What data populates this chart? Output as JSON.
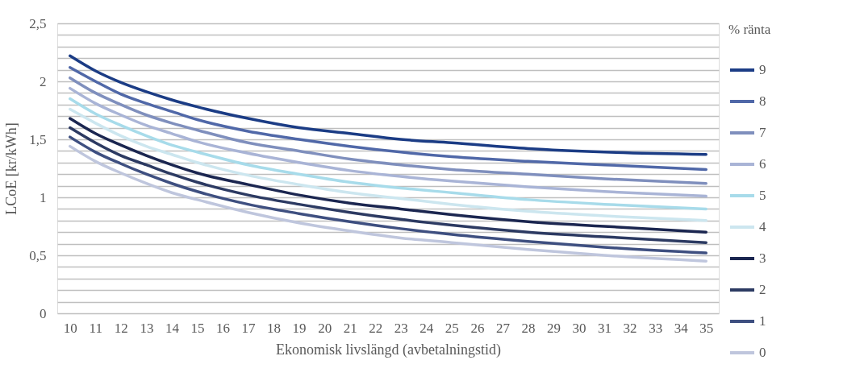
{
  "chart_data": {
    "type": "line",
    "xlabel": "Ekonomisk livslängd (avbetalningstid)",
    "ylabel": "LCoE [kr/kWh]",
    "legend_title": "% ränta",
    "x": [
      10,
      11,
      12,
      13,
      14,
      15,
      17,
      19,
      21,
      23,
      25,
      28,
      31,
      35
    ],
    "xlim": [
      9.5,
      35.5
    ],
    "xticks": [
      10,
      11,
      12,
      13,
      14,
      15,
      16,
      17,
      18,
      19,
      20,
      21,
      22,
      23,
      24,
      25,
      26,
      27,
      28,
      29,
      30,
      31,
      32,
      33,
      34,
      35
    ],
    "ylim": [
      0,
      2.5
    ],
    "yticks": [
      0,
      {
        "value": 0.1,
        "label": null
      },
      {
        "value": 0.2,
        "label": null
      },
      {
        "value": 0.3,
        "label": null
      },
      {
        "value": 0.4,
        "label": null
      },
      {
        "value": 0.5,
        "label": "0,5"
      },
      {
        "value": 0.6,
        "label": null
      },
      {
        "value": 0.7,
        "label": null
      },
      {
        "value": 0.8,
        "label": null
      },
      {
        "value": 0.9,
        "label": null
      },
      1,
      {
        "value": 1.1,
        "label": null
      },
      {
        "value": 1.2,
        "label": null
      },
      {
        "value": 1.3,
        "label": null
      },
      {
        "value": 1.4,
        "label": null
      },
      {
        "value": 1.5,
        "label": "1,5"
      },
      {
        "value": 1.6,
        "label": null
      },
      {
        "value": 1.7,
        "label": null
      },
      {
        "value": 1.8,
        "label": null
      },
      {
        "value": 1.9,
        "label": null
      },
      2,
      {
        "value": 2.1,
        "label": null
      },
      {
        "value": 2.2,
        "label": null
      },
      {
        "value": 2.3,
        "label": null
      },
      {
        "value": 2.4,
        "label": null
      },
      {
        "value": 2.5,
        "label": "2,5"
      }
    ],
    "grid": "y",
    "legend": "right",
    "marker": "none",
    "line_style": "solid",
    "series": [
      {
        "name": "9",
        "color": "#1b3c85",
        "values": [
          2.22,
          2.09,
          1.99,
          1.91,
          1.84,
          1.78,
          1.68,
          1.6,
          1.55,
          1.5,
          1.47,
          1.42,
          1.39,
          1.37
        ]
      },
      {
        "name": "8",
        "color": "#5068a8",
        "values": [
          2.12,
          2.0,
          1.89,
          1.81,
          1.74,
          1.67,
          1.57,
          1.5,
          1.44,
          1.39,
          1.35,
          1.31,
          1.28,
          1.24
        ]
      },
      {
        "name": "7",
        "color": "#7f8fbd",
        "values": [
          2.03,
          1.9,
          1.8,
          1.71,
          1.64,
          1.58,
          1.47,
          1.4,
          1.33,
          1.28,
          1.24,
          1.2,
          1.16,
          1.12
        ]
      },
      {
        "name": "6",
        "color": "#a9b4d6",
        "values": [
          1.94,
          1.81,
          1.71,
          1.62,
          1.55,
          1.48,
          1.38,
          1.3,
          1.23,
          1.18,
          1.14,
          1.09,
          1.05,
          1.01
        ]
      },
      {
        "name": "5",
        "color": "#a7dbea",
        "values": [
          1.85,
          1.72,
          1.62,
          1.53,
          1.45,
          1.39,
          1.28,
          1.2,
          1.13,
          1.08,
          1.04,
          0.98,
          0.94,
          0.9
        ]
      },
      {
        "name": "4",
        "color": "#cce6ef",
        "values": [
          1.76,
          1.64,
          1.53,
          1.44,
          1.37,
          1.3,
          1.19,
          1.11,
          1.04,
          0.99,
          0.94,
          0.88,
          0.84,
          0.8
        ]
      },
      {
        "name": "3",
        "color": "#1b2650",
        "values": [
          1.68,
          1.55,
          1.45,
          1.36,
          1.28,
          1.21,
          1.11,
          1.02,
          0.95,
          0.9,
          0.85,
          0.79,
          0.75,
          0.7
        ]
      },
      {
        "name": "2",
        "color": "#2c3a62",
        "values": [
          1.6,
          1.47,
          1.36,
          1.28,
          1.2,
          1.13,
          1.02,
          0.94,
          0.87,
          0.81,
          0.76,
          0.7,
          0.66,
          0.61
        ]
      },
      {
        "name": "1",
        "color": "#3e4f80",
        "values": [
          1.52,
          1.39,
          1.29,
          1.2,
          1.12,
          1.05,
          0.94,
          0.86,
          0.79,
          0.73,
          0.68,
          0.62,
          0.57,
          0.52
        ]
      },
      {
        "name": "0",
        "color": "#bfc6dd",
        "values": [
          1.44,
          1.31,
          1.21,
          1.12,
          1.04,
          0.98,
          0.87,
          0.78,
          0.71,
          0.65,
          0.61,
          0.55,
          0.5,
          0.45
        ]
      }
    ]
  }
}
